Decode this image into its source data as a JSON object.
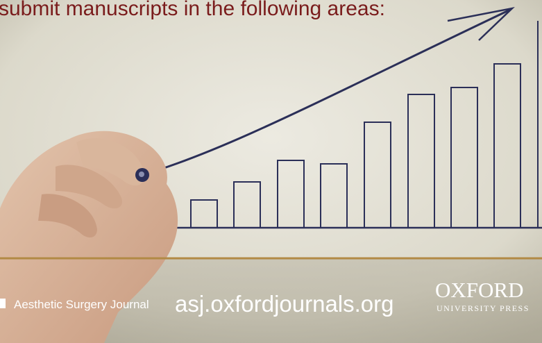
{
  "header": {
    "title": "submit manuscripts in the following areas:"
  },
  "footer": {
    "journal": "Aesthetic Surgery Journal",
    "url": "asj.oxfordjournals.org",
    "publisher": {
      "name": "OXFORD",
      "subtitle": "UNIVERSITY PRESS"
    }
  }
}
